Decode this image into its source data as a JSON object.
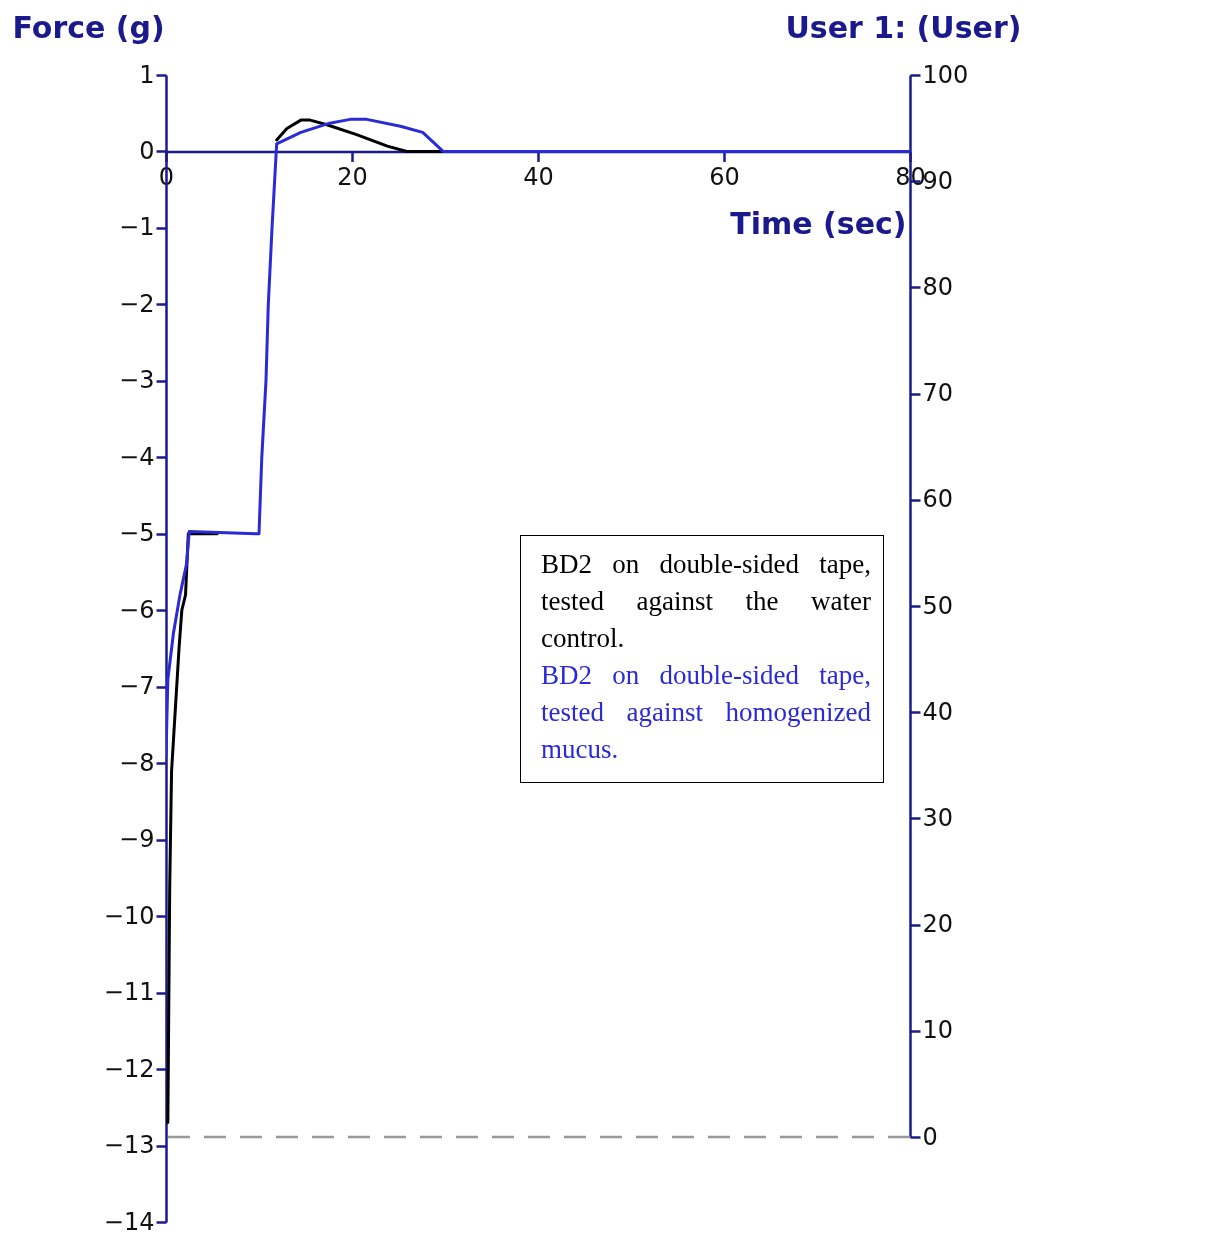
{
  "chart_data": {
    "type": "line",
    "xlabel": "Time (sec)",
    "ylabel": "Force (g)",
    "y2label": "User 1: (User)",
    "xlim": [
      0,
      80
    ],
    "xticks": [
      0,
      20,
      40,
      60,
      80
    ],
    "ylim": [
      -14,
      1
    ],
    "yticks": [
      -14,
      -13,
      -12,
      -11,
      -10,
      -9,
      -8,
      -7,
      -6,
      -5,
      -4,
      -3,
      -2,
      -1,
      0,
      1
    ],
    "y2lim": [
      0,
      100
    ],
    "y2ticks": [
      0,
      10,
      20,
      30,
      40,
      50,
      60,
      70,
      80,
      90,
      100
    ],
    "legend": "right",
    "ref_lines": [
      {
        "axis": "y2",
        "value": 0,
        "color": "#999999",
        "line_style": "dashed"
      }
    ],
    "series": [
      {
        "name": "BD2 on double-sided tape, tested against the water control.",
        "color": "#000000",
        "x": [
          0.2,
          0.4,
          0.6,
          1.0,
          1.4,
          1.7,
          2.1,
          2.4,
          5.5,
          10.0,
          10.3,
          10.75,
          11.0,
          11.4,
          11.9,
          13.0,
          14.5,
          15.5,
          17.3,
          20.5,
          23.8,
          25.9,
          80
        ],
        "values": [
          -12.7,
          -9.6,
          -8.1,
          -7.3,
          -6.5,
          -6.0,
          -5.8,
          -5.0,
          -5.0,
          null,
          null,
          null,
          null,
          null,
          0.15,
          0.3,
          0.41,
          0.41,
          0.35,
          0.22,
          0.07,
          0,
          0
        ]
      },
      {
        "name": "BD2 on double-sided tape, tested against homogenized mucus.",
        "color": "#2a2ad6",
        "x": [
          0,
          0.2,
          0.8,
          1.5,
          2.2,
          2.5,
          10.0,
          10.3,
          10.75,
          11.0,
          11.4,
          11.9,
          14.5,
          17.6,
          19.8,
          21.6,
          25.2,
          27.6,
          29.8,
          80
        ],
        "values": [
          -7.9,
          -6.9,
          -6.3,
          -5.8,
          -5.4,
          -4.97,
          -5.0,
          -4.0,
          -3.0,
          -2.0,
          -1.0,
          0.1,
          0.25,
          0.37,
          0.42,
          0.42,
          0.33,
          0.25,
          0,
          0
        ]
      }
    ]
  }
}
